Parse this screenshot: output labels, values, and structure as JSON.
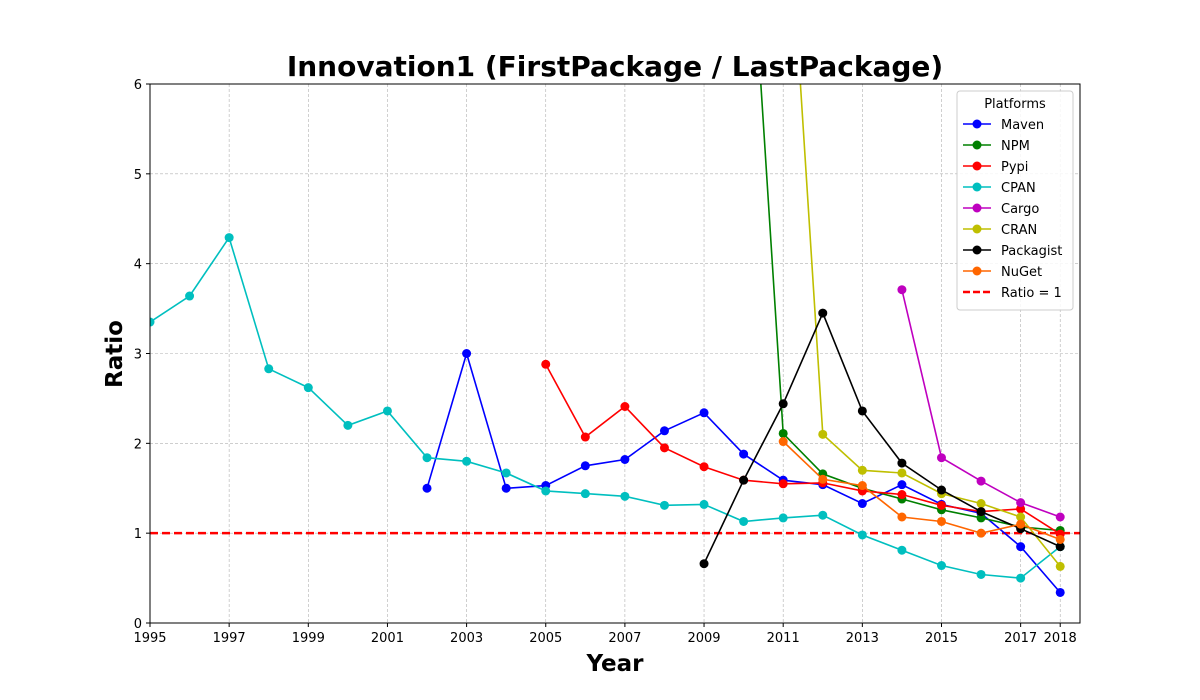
{
  "chart_data": {
    "type": "line",
    "title": "Innovation1 (FirstPackage / LastPackage)",
    "xlabel": "Year",
    "ylabel": "Ratio",
    "xlim": [
      1995,
      2018.5
    ],
    "ylim": [
      0,
      6
    ],
    "x_ticks": [
      1995,
      1997,
      1999,
      2001,
      2003,
      2005,
      2007,
      2009,
      2011,
      2013,
      2015,
      2017,
      2018
    ],
    "y_ticks": [
      0,
      1,
      2,
      3,
      4,
      5,
      6
    ],
    "grid": true,
    "legend": {
      "title": "Platforms",
      "placement": "upper right"
    },
    "series": [
      {
        "name": "Maven",
        "color": "#0000ff",
        "x": [
          2002,
          2003,
          2004,
          2005,
          2006,
          2007,
          2008,
          2009,
          2010,
          2011,
          2012,
          2013,
          2014,
          2015,
          2016,
          2017,
          2018
        ],
        "y": [
          1.5,
          3.0,
          1.5,
          1.53,
          1.75,
          1.82,
          2.14,
          2.34,
          1.88,
          1.59,
          1.54,
          1.33,
          1.54,
          1.32,
          1.22,
          0.85,
          0.34
        ]
      },
      {
        "name": "NPM",
        "color": "#008000",
        "x": [
          2010,
          2011,
          2012,
          2013,
          2014,
          2015,
          2016,
          2017,
          2018
        ],
        "y": [
          9.0,
          2.11,
          1.66,
          1.5,
          1.38,
          1.26,
          1.17,
          1.07,
          1.03
        ]
      },
      {
        "name": "Pypi",
        "color": "#ff0000",
        "x": [
          2005,
          2006,
          2007,
          2008,
          2009,
          2010,
          2011,
          2012,
          2013,
          2014,
          2015,
          2016,
          2017,
          2018
        ],
        "y": [
          2.88,
          2.07,
          2.41,
          1.95,
          1.74,
          1.59,
          1.55,
          1.56,
          1.47,
          1.43,
          1.31,
          1.24,
          1.27,
          0.99
        ]
      },
      {
        "name": "CPAN",
        "color": "#00bfbf",
        "x": [
          1995,
          1996,
          1997,
          1998,
          1999,
          2000,
          2001,
          2002,
          2003,
          2004,
          2005,
          2006,
          2007,
          2008,
          2009,
          2010,
          2011,
          2012,
          2013,
          2014,
          2015,
          2016,
          2017,
          2018
        ],
        "y": [
          3.35,
          3.64,
          4.29,
          2.83,
          2.62,
          2.2,
          2.36,
          1.84,
          1.8,
          1.67,
          1.47,
          1.44,
          1.41,
          1.31,
          1.32,
          1.13,
          1.17,
          1.2,
          0.98,
          0.81,
          0.64,
          0.54,
          0.5,
          0.85
        ]
      },
      {
        "name": "Cargo",
        "color": "#bf00bf",
        "x": [
          2014,
          2015,
          2016,
          2017,
          2018
        ],
        "y": [
          3.71,
          1.84,
          1.58,
          1.34,
          1.18
        ]
      },
      {
        "name": "CRAN",
        "color": "#bfbf00",
        "x": [
          2011,
          2012,
          2013,
          2014,
          2015,
          2016,
          2017,
          2018
        ],
        "y": [
          9.0,
          2.1,
          1.7,
          1.67,
          1.44,
          1.33,
          1.18,
          0.63
        ]
      },
      {
        "name": "Packagist",
        "color": "#000000",
        "x": [
          2009,
          2010,
          2011,
          2012,
          2013,
          2014,
          2015,
          2016,
          2017,
          2018
        ],
        "y": [
          0.66,
          1.59,
          2.44,
          3.45,
          2.36,
          1.78,
          1.48,
          1.24,
          1.05,
          0.85
        ]
      },
      {
        "name": "NuGet",
        "color": "#ff6600",
        "x": [
          2011,
          2012,
          2013,
          2014,
          2015,
          2016,
          2017,
          2018
        ],
        "y": [
          2.02,
          1.6,
          1.53,
          1.18,
          1.13,
          1.0,
          1.1,
          0.93
        ]
      }
    ],
    "reference_line": {
      "name": "Ratio = 1",
      "y": 1,
      "color": "#ff0000",
      "style": "dashed"
    }
  }
}
